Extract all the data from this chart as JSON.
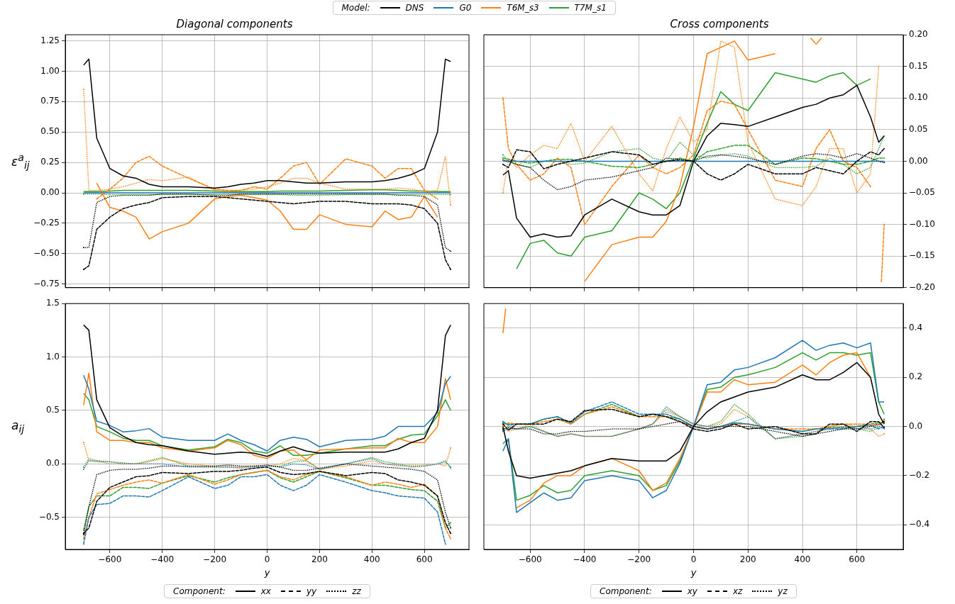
{
  "chart_data": [
    {
      "type": "line",
      "title": "Diagonal components",
      "ylabel": "ε$^{a}$$_{ij}$",
      "legend": "top",
      "legend_title": "Model:",
      "grid": true,
      "tick_labels": "y",
      "marker": "none",
      "x": [
        -700,
        -680,
        -650,
        -600,
        -550,
        -500,
        -450,
        -400,
        -300,
        -200,
        -150,
        -100,
        -50,
        0,
        50,
        100,
        150,
        200,
        300,
        400,
        450,
        500,
        550,
        600,
        650,
        680,
        700
      ],
      "xlim": [
        -770,
        770
      ],
      "xticks": [
        {
          "value": -600,
          "label": null
        },
        {
          "value": -400,
          "label": null
        },
        {
          "value": -200,
          "label": null
        },
        {
          "value": 0,
          "label": null
        },
        {
          "value": 200,
          "label": null
        },
        {
          "value": 400,
          "label": null
        },
        {
          "value": 600,
          "label": null
        }
      ],
      "ylim": [
        -0.78,
        1.3
      ],
      "yticks": [
        {
          "value": -0.75,
          "label": "−0.75"
        },
        {
          "value": -0.5,
          "label": "−0.50"
        },
        {
          "value": -0.25,
          "label": "−0.25"
        },
        {
          "value": 0,
          "label": "0.00"
        },
        {
          "value": 0.25,
          "label": "0.25"
        },
        {
          "value": 0.5,
          "label": "0.50"
        },
        {
          "value": 0.75,
          "label": "0.75"
        },
        {
          "value": 1,
          "label": "1.00"
        },
        {
          "value": 1.25,
          "label": "1.25"
        }
      ],
      "series": [
        {
          "name": "DNS",
          "color": "#000000",
          "line_style": "solid",
          "values": [
            1.05,
            1.1,
            0.45,
            0.2,
            0.14,
            0.12,
            0.07,
            0.05,
            0.05,
            0.04,
            0.05,
            0.07,
            0.08,
            0.1,
            0.1,
            0.09,
            0.08,
            0.08,
            0.09,
            0.09,
            0.1,
            0.12,
            0.15,
            0.2,
            0.5,
            1.1,
            1.08
          ]
        },
        {
          "color": "#000000",
          "line_style": "dashed",
          "values": [
            -0.63,
            -0.6,
            -0.3,
            -0.2,
            -0.13,
            -0.1,
            -0.08,
            -0.04,
            -0.03,
            -0.03,
            -0.04,
            -0.05,
            -0.06,
            -0.07,
            -0.08,
            -0.09,
            -0.08,
            -0.07,
            -0.07,
            -0.09,
            -0.09,
            -0.09,
            -0.1,
            -0.13,
            -0.25,
            -0.55,
            -0.63
          ]
        },
        {
          "color": "#000000",
          "line_style": "dotted",
          "values": [
            -0.45,
            -0.45,
            -0.08,
            -0.03,
            -0.02,
            -0.02,
            -0.02,
            -0.01,
            -0.01,
            -0.02,
            -0.02,
            -0.01,
            -0.01,
            -0.01,
            -0.01,
            -0.01,
            -0.01,
            -0.01,
            -0.01,
            -0.01,
            -0.01,
            -0.02,
            -0.02,
            -0.03,
            -0.1,
            -0.45,
            -0.48
          ]
        },
        {
          "name": "G0",
          "color": "#1f77b4",
          "line_style": "solid",
          "values": [
            0,
            0,
            0,
            0,
            0,
            0,
            0,
            0,
            0,
            0,
            0,
            0,
            0,
            0,
            0,
            0,
            0,
            0,
            0,
            0,
            0,
            0,
            0,
            0,
            0,
            0,
            0
          ]
        },
        {
          "name": "T6M_s3",
          "color": "#ff7f0e",
          "line_style": "solid",
          "values": [
            null,
            null,
            0.08,
            -0.12,
            -0.15,
            -0.2,
            -0.38,
            -0.32,
            -0.25,
            -0.05,
            -0.03,
            -0.02,
            -0.04,
            -0.06,
            -0.15,
            -0.3,
            -0.3,
            -0.18,
            -0.26,
            -0.28,
            -0.15,
            -0.22,
            -0.2,
            -0.03,
            -0.2,
            null,
            null
          ]
        },
        {
          "color": "#ff7f0e",
          "line_style": "dashed",
          "values": [
            null,
            null,
            -0.05,
            0.03,
            0.12,
            0.25,
            0.3,
            0.22,
            0.12,
            0.03,
            0.02,
            0.02,
            0.05,
            0.03,
            0.12,
            0.22,
            0.25,
            0.07,
            0.28,
            0.22,
            0.12,
            0.2,
            0.2,
            0.02,
            -0.05,
            null,
            null
          ]
        },
        {
          "color": "#ff7f0e",
          "line_style": "dotted",
          "values": [
            0.85,
            0.02,
            0.02,
            0.03,
            0.05,
            0.08,
            0.11,
            0.1,
            0.13,
            0.02,
            0.01,
            0.02,
            0.03,
            0.05,
            0.08,
            0.12,
            0.12,
            0.08,
            0.03,
            0.03,
            0.03,
            0.04,
            0.03,
            0.01,
            0.02,
            0.3,
            -0.1
          ]
        },
        {
          "name": "T7M_s1",
          "color": "#2ca02c",
          "line_style": "solid",
          "values": [
            0.01,
            0.01,
            0.01,
            0.015,
            0.02,
            0.02,
            0.02,
            0.02,
            0.02,
            0.015,
            0.01,
            0.01,
            0.01,
            0.01,
            0.015,
            0.015,
            0.015,
            0.015,
            0.02,
            0.025,
            0.025,
            0.02,
            0.015,
            0.015,
            0.01,
            0.01,
            0.01
          ]
        },
        {
          "color": "#2ca02c",
          "line_style": "dotted",
          "values": [
            -0.01,
            -0.01,
            -0.01,
            -0.015,
            -0.015,
            -0.015,
            -0.015,
            -0.015,
            -0.015,
            -0.015,
            -0.015,
            -0.015,
            -0.015,
            -0.015,
            -0.015,
            -0.02,
            -0.02,
            -0.02,
            -0.015,
            -0.015,
            -0.015,
            -0.015,
            -0.015,
            -0.015,
            -0.015,
            -0.015,
            -0.015
          ]
        }
      ]
    },
    {
      "type": "line",
      "title": "Cross components",
      "grid": true,
      "tick_labels": "y",
      "marker": "none",
      "x": [
        -700,
        -680,
        -650,
        -600,
        -550,
        -500,
        -450,
        -400,
        -300,
        -200,
        -150,
        -100,
        -50,
        0,
        50,
        100,
        150,
        200,
        300,
        400,
        450,
        500,
        550,
        600,
        650,
        680,
        700
      ],
      "xlim": [
        -770,
        770
      ],
      "xticks": [
        {
          "value": -600,
          "label": null
        },
        {
          "value": -400,
          "label": null
        },
        {
          "value": -200,
          "label": null
        },
        {
          "value": 0,
          "label": null
        },
        {
          "value": 200,
          "label": null
        },
        {
          "value": 400,
          "label": null
        },
        {
          "value": 600,
          "label": null
        }
      ],
      "y2lim": [
        -0.2,
        0.2
      ],
      "y2ticks": [
        {
          "value": -0.2,
          "label": "−0.20"
        },
        {
          "value": -0.15,
          "label": "−0.15"
        },
        {
          "value": -0.1,
          "label": "−0.10"
        },
        {
          "value": -0.05,
          "label": "−0.05"
        },
        {
          "value": 0,
          "label": "0.00"
        },
        {
          "value": 0.05,
          "label": "0.05"
        },
        {
          "value": 0.1,
          "label": "0.10"
        },
        {
          "value": 0.15,
          "label": "0.15"
        },
        {
          "value": 0.2,
          "label": "0.20"
        }
      ],
      "series": [
        {
          "color": "#000000",
          "line_style": "solid",
          "axis": "y2",
          "values": [
            -0.022,
            -0.015,
            -0.09,
            -0.12,
            -0.115,
            -0.12,
            -0.118,
            -0.085,
            -0.06,
            -0.08,
            -0.085,
            -0.085,
            -0.07,
            0,
            0.04,
            0.06,
            0.058,
            0.055,
            0.07,
            0.085,
            0.09,
            0.1,
            0.105,
            0.12,
            0.07,
            0.03,
            0.04
          ]
        },
        {
          "color": "#000000",
          "line_style": "dashed",
          "axis": "y2",
          "values": [
            -0.005,
            -0.01,
            0.018,
            0.015,
            -0.012,
            -0.005,
            0,
            0.005,
            0.015,
            0.01,
            -0.005,
            0,
            0.002,
            0,
            -0.02,
            -0.03,
            -0.02,
            -0.005,
            -0.02,
            -0.02,
            -0.01,
            -0.015,
            -0.02,
            0,
            0.015,
            0.01,
            0.02
          ]
        },
        {
          "color": "#000000",
          "line_style": "dotted",
          "axis": "y2",
          "values": [
            0.002,
            0,
            -0.005,
            -0.01,
            -0.03,
            -0.045,
            -0.04,
            -0.03,
            -0.025,
            -0.015,
            -0.01,
            0.005,
            0.003,
            0,
            0.008,
            0.01,
            0.008,
            0.005,
            -0.005,
            0.008,
            0.012,
            0.01,
            0.005,
            0.012,
            0.005,
            0,
            -0.002
          ]
        },
        {
          "color": "#1f77b4",
          "line_style": "solid",
          "axis": "y2",
          "values": [
            0,
            0,
            0,
            0,
            0,
            0,
            0,
            0,
            0,
            0,
            0,
            0,
            0,
            0,
            0,
            0,
            0,
            0,
            0,
            0,
            0,
            0,
            0,
            0,
            0,
            0,
            0
          ]
        },
        {
          "color": "#ff7f0e",
          "line_style": "solid",
          "axis": "y2",
          "x": [
            -400,
            -300,
            -200,
            -150,
            -100,
            -50,
            0,
            50,
            100,
            150,
            200,
            300,
            400,
            430,
            450,
            470
          ],
          "values": [
            -0.19,
            -0.132,
            -0.12,
            -0.12,
            -0.095,
            -0.04,
            0.055,
            0.17,
            0.18,
            0.19,
            0.16,
            0.17,
            null,
            0.195,
            0.185,
            0.195
          ]
        },
        {
          "color": "#ff7f0e",
          "line_style": "dashed",
          "axis": "y2",
          "x": [
            -700,
            -680,
            -650,
            -600,
            -550,
            -500,
            -450,
            -400,
            -300,
            -200,
            -150,
            -100,
            -50,
            0,
            50,
            100,
            150,
            200,
            300,
            400,
            450,
            500,
            550,
            600,
            650,
            680,
            690,
            700
          ],
          "values": [
            0.1,
            0.02,
            -0.005,
            -0.03,
            -0.02,
            0.005,
            -0.01,
            -0.1,
            -0.04,
            0.01,
            -0.01,
            -0.02,
            -0.01,
            0.01,
            0.08,
            0.095,
            0.09,
            0.05,
            -0.03,
            -0.04,
            0.02,
            0.05,
            0,
            -0.01,
            -0.04,
            null,
            -0.19,
            -0.1
          ]
        },
        {
          "color": "#ff7f0e",
          "line_style": "dotted",
          "axis": "y2",
          "values": [
            -0.05,
            0.005,
            -0.01,
            0.01,
            0.025,
            0.02,
            0.06,
            0,
            0.055,
            -0.02,
            -0.047,
            0.02,
            0.07,
            0.03,
            0.05,
            0.19,
            0.18,
            0.03,
            -0.06,
            -0.07,
            -0.04,
            0.02,
            0.02,
            -0.05,
            -0.02,
            0.15,
            null
          ]
        },
        {
          "color": "#2ca02c",
          "line_style": "solid",
          "axis": "y2",
          "values": [
            null,
            null,
            -0.17,
            -0.13,
            -0.125,
            -0.145,
            -0.15,
            -0.12,
            -0.11,
            -0.05,
            -0.06,
            -0.075,
            -0.05,
            0.005,
            0.06,
            0.11,
            0.09,
            0.08,
            0.14,
            0.13,
            0.125,
            0.135,
            0.14,
            0.12,
            0.13,
            null,
            null
          ]
        },
        {
          "color": "#2ca02c",
          "line_style": "dashed",
          "axis": "y2",
          "values": [
            0.005,
            0.003,
            0,
            -0.003,
            0,
            0.003,
            0.003,
            0,
            -0.008,
            -0.01,
            -0.005,
            0,
            0.005,
            0,
            0.015,
            0.02,
            0.025,
            0.025,
            -0.005,
            0.005,
            0.004,
            0,
            -0.005,
            -0.005,
            0,
            0.005,
            0.005
          ]
        },
        {
          "color": "#2ca02c",
          "line_style": "dotted",
          "axis": "y2",
          "values": [
            0.01,
            0,
            -0.005,
            -0.01,
            0,
            0,
            -0.005,
            -0.003,
            0.015,
            0.02,
            0.005,
            0,
            0.03,
            0.01,
            0.005,
            0.01,
            0.012,
            0.008,
            -0.01,
            -0.01,
            -0.008,
            0.005,
            -0.005,
            -0.02,
            -0.01,
            0.02,
            0.04
          ]
        }
      ]
    },
    {
      "type": "line",
      "xlabel": "y",
      "ylabel": "a$_{ij}$",
      "legend": "bottom",
      "legend_title": "Component:",
      "annotations": [
        "xx",
        "yy",
        "zz"
      ],
      "grid": true,
      "marker": "none",
      "x": [
        -700,
        -680,
        -650,
        -600,
        -550,
        -500,
        -450,
        -400,
        -300,
        -200,
        -150,
        -100,
        -50,
        0,
        50,
        100,
        150,
        200,
        300,
        400,
        450,
        500,
        550,
        600,
        650,
        680,
        700
      ],
      "xlim": [
        -770,
        770
      ],
      "xticks": [
        {
          "value": -600,
          "label": "−600"
        },
        {
          "value": -400,
          "label": "−400"
        },
        {
          "value": -200,
          "label": "−200"
        },
        0,
        200,
        400,
        600
      ],
      "ylim": [
        -0.8,
        1.5
      ],
      "yticks": [
        {
          "value": -0.5,
          "label": "−0.5"
        },
        {
          "value": 0,
          "label": "0.0"
        },
        {
          "value": 0.5,
          "label": "0.5"
        },
        {
          "value": 1,
          "label": "1.0"
        },
        {
          "value": 1.5,
          "label": "1.5"
        }
      ],
      "series": [
        {
          "color": "#000000",
          "line_style": "solid",
          "values": [
            1.3,
            1.25,
            0.6,
            0.34,
            0.26,
            0.2,
            0.18,
            0.17,
            0.12,
            0.09,
            0.1,
            0.11,
            0.1,
            0.07,
            0.12,
            0.16,
            0.12,
            0.1,
            0.11,
            0.11,
            0.11,
            0.14,
            0.2,
            0.24,
            0.5,
            1.2,
            1.3
          ]
        },
        {
          "color": "#000000",
          "line_style": "dashed",
          "values": [
            -0.65,
            -0.6,
            -0.35,
            -0.22,
            -0.17,
            -0.12,
            -0.11,
            -0.08,
            -0.09,
            -0.07,
            -0.07,
            -0.06,
            -0.04,
            -0.03,
            -0.08,
            -0.1,
            -0.09,
            -0.07,
            -0.11,
            -0.08,
            -0.09,
            -0.15,
            -0.17,
            -0.2,
            -0.3,
            -0.55,
            -0.65
          ]
        },
        {
          "color": "#000000",
          "line_style": "dotted",
          "values": [
            -0.66,
            -0.4,
            -0.1,
            -0.06,
            -0.05,
            -0.05,
            -0.04,
            -0.02,
            -0.02,
            -0.02,
            -0.01,
            -0.02,
            -0.02,
            -0.01,
            -0.03,
            -0.06,
            -0.06,
            -0.04,
            0,
            -0.02,
            -0.03,
            -0.04,
            -0.05,
            -0.07,
            -0.15,
            -0.45,
            -0.6
          ]
        },
        {
          "color": "#1f77b4",
          "line_style": "solid",
          "values": [
            0.83,
            0.7,
            0.4,
            0.36,
            0.3,
            0.31,
            0.33,
            0.25,
            0.22,
            0.22,
            0.28,
            0.22,
            0.18,
            0.12,
            0.22,
            0.25,
            0.23,
            0.16,
            0.22,
            0.23,
            0.26,
            0.35,
            0.35,
            0.35,
            0.48,
            0.75,
            0.82
          ]
        },
        {
          "color": "#1f77b4",
          "line_style": "dashed",
          "values": [
            -0.75,
            -0.5,
            -0.38,
            -0.37,
            -0.3,
            -0.3,
            -0.31,
            -0.25,
            -0.12,
            -0.23,
            -0.2,
            -0.12,
            -0.12,
            -0.1,
            -0.2,
            -0.25,
            -0.2,
            -0.1,
            -0.17,
            -0.25,
            -0.27,
            -0.3,
            -0.31,
            -0.32,
            -0.45,
            -0.75,
            null
          ]
        },
        {
          "color": "#1f77b4",
          "line_style": "dotted",
          "values": [
            -0.05,
            0.03,
            0.02,
            0.02,
            0,
            0,
            0,
            0,
            -0.03,
            -0.03,
            -0.03,
            -0.04,
            -0.03,
            -0.02,
            -0.03,
            0,
            -0.01,
            -0.05,
            0,
            0.05,
            0,
            -0.01,
            -0.03,
            -0.02,
            0,
            0.02,
            -0.03
          ]
        },
        {
          "color": "#ff7f0e",
          "line_style": "solid",
          "values": [
            0.55,
            0.85,
            0.3,
            0.22,
            0.22,
            0.2,
            0.2,
            0.15,
            0.12,
            0.15,
            0.22,
            0.18,
            0.08,
            0.05,
            0.12,
            0.13,
            0.04,
            0.13,
            0.14,
            0.15,
            0.15,
            0.24,
            0.2,
            0.2,
            0.35,
            0.8,
            0.6
          ]
        },
        {
          "color": "#ff7f0e",
          "line_style": "dashed",
          "values": [
            -0.7,
            -0.5,
            -0.28,
            -0.24,
            -0.2,
            -0.17,
            -0.15,
            -0.18,
            -0.1,
            -0.19,
            -0.15,
            -0.1,
            -0.08,
            -0.06,
            -0.12,
            -0.15,
            -0.1,
            -0.07,
            -0.12,
            -0.2,
            -0.17,
            -0.19,
            -0.22,
            -0.19,
            -0.3,
            -0.6,
            -0.7
          ]
        },
        {
          "color": "#ff7f0e",
          "line_style": "dotted",
          "values": [
            0.2,
            0.03,
            0.03,
            0,
            0,
            0,
            0.02,
            0.05,
            0,
            -0.02,
            -0.02,
            -0.03,
            -0.02,
            -0.02,
            0,
            0.05,
            0.03,
            -0.05,
            -0.02,
            0.03,
            0,
            -0.02,
            -0.01,
            -0.01,
            0,
            -0.02,
            0.15
          ]
        },
        {
          "color": "#2ca02c",
          "line_style": "solid",
          "values": [
            0.66,
            0.6,
            0.35,
            0.3,
            0.24,
            0.22,
            0.22,
            0.17,
            0.13,
            0.16,
            0.23,
            0.2,
            0.12,
            0.1,
            0.17,
            0.08,
            0.08,
            0.1,
            0.14,
            0.17,
            0.17,
            0.23,
            0.27,
            0.28,
            0.45,
            0.6,
            0.5
          ]
        },
        {
          "color": "#2ca02c",
          "line_style": "dashed",
          "values": [
            -0.62,
            -0.4,
            -0.3,
            -0.3,
            -0.22,
            -0.22,
            -0.23,
            -0.18,
            -0.11,
            -0.17,
            -0.13,
            -0.1,
            -0.08,
            -0.06,
            -0.13,
            -0.17,
            -0.12,
            -0.07,
            -0.13,
            -0.2,
            -0.2,
            -0.22,
            -0.24,
            -0.25,
            -0.35,
            -0.6,
            -0.55
          ]
        },
        {
          "color": "#2ca02c",
          "line_style": "dotted",
          "values": [
            -0.03,
            0.05,
            0.03,
            0.02,
            0.01,
            0,
            0.03,
            0.06,
            -0.02,
            -0.03,
            -0.03,
            -0.03,
            -0.02,
            -0.02,
            -0.02,
            0.02,
            0.03,
            -0.05,
            0,
            0.06,
            0.02,
            0,
            -0.02,
            -0.02,
            0,
            0.03,
            -0.04
          ]
        }
      ]
    },
    {
      "type": "line",
      "xlabel": "y",
      "legend": "bottom",
      "legend_title": "Component:",
      "annotations": [
        "xy",
        "xz",
        "yz"
      ],
      "grid": true,
      "marker": "none",
      "x": [
        -700,
        -680,
        -650,
        -600,
        -550,
        -500,
        -450,
        -400,
        -300,
        -200,
        -150,
        -100,
        -50,
        0,
        50,
        100,
        150,
        200,
        300,
        400,
        450,
        500,
        550,
        600,
        650,
        680,
        700
      ],
      "xlim": [
        -770,
        770
      ],
      "xticks": [
        {
          "value": -600,
          "label": "−600"
        },
        {
          "value": -400,
          "label": "−400"
        },
        {
          "value": -200,
          "label": "−200"
        },
        0,
        200,
        400,
        600
      ],
      "y2lim": [
        -0.5,
        0.5
      ],
      "y2ticks": [
        {
          "value": -0.4,
          "label": "−0.4"
        },
        {
          "value": -0.2,
          "label": "−0.2"
        },
        {
          "value": 0,
          "label": "0.0"
        },
        {
          "value": 0.2,
          "label": "0.2"
        },
        {
          "value": 0.4,
          "label": "0.4"
        }
      ],
      "series": [
        {
          "color": "#000000",
          "line_style": "solid",
          "axis": "y2",
          "values": [
            0,
            -0.1,
            -0.2,
            -0.21,
            -0.2,
            -0.19,
            -0.18,
            -0.16,
            -0.13,
            -0.14,
            -0.14,
            -0.14,
            -0.1,
            0,
            0.06,
            0.1,
            0.12,
            0.14,
            0.16,
            0.21,
            0.19,
            0.19,
            0.22,
            0.26,
            0.2,
            0.05,
            0.01
          ]
        },
        {
          "color": "#000000",
          "line_style": "dashed",
          "axis": "y2",
          "values": [
            0.01,
            -0.015,
            0.01,
            0.01,
            0.01,
            0.03,
            0.02,
            0.065,
            0.07,
            0.04,
            0.05,
            0.04,
            0.02,
            -0.01,
            -0.02,
            -0.01,
            0.01,
            -0.01,
            0,
            -0.03,
            -0.03,
            0.01,
            0.01,
            -0.02,
            0.02,
            0.02,
            -0.005
          ]
        },
        {
          "color": "#000000",
          "line_style": "dotted",
          "axis": "y2",
          "values": [
            -0.01,
            -0.005,
            -0.01,
            -0.01,
            -0.03,
            -0.03,
            -0.02,
            -0.02,
            -0.01,
            -0.01,
            0,
            0.01,
            0.02,
            0,
            -0.01,
            0,
            0,
            0,
            -0.02,
            -0.04,
            -0.03,
            -0.02,
            -0.01,
            -0.01,
            0,
            0.01,
            0.02
          ]
        },
        {
          "color": "#1f77b4",
          "line_style": "solid",
          "axis": "y2",
          "values": [
            -0.1,
            -0.05,
            -0.35,
            -0.31,
            -0.27,
            -0.3,
            -0.29,
            -0.22,
            -0.2,
            -0.22,
            -0.29,
            -0.26,
            -0.15,
            0,
            0.17,
            0.18,
            0.23,
            0.24,
            0.28,
            0.35,
            0.31,
            0.33,
            0.34,
            0.32,
            0.34,
            0.1,
            0.1
          ]
        },
        {
          "color": "#1f77b4",
          "line_style": "dashed",
          "axis": "y2",
          "values": [
            0.02,
            0.005,
            0.01,
            0.01,
            0.03,
            0.04,
            0.015,
            0.06,
            0.1,
            0.05,
            0.05,
            0.05,
            0.03,
            0,
            -0.01,
            0,
            0.015,
            0.01,
            -0.01,
            -0.02,
            -0.01,
            -0.01,
            -0.01,
            0,
            0.005,
            -0.01,
            0
          ]
        },
        {
          "color": "#1f77b4",
          "line_style": "dotted",
          "axis": "y2",
          "values": [
            -0.02,
            -0.01,
            -0.01,
            0,
            -0.02,
            -0.04,
            -0.03,
            -0.04,
            -0.04,
            -0.01,
            0.01,
            0.08,
            0.04,
            0.01,
            0,
            0,
            0.02,
            0.04,
            -0.05,
            -0.03,
            -0.02,
            -0.01,
            0,
            -0.01,
            -0.01,
            0,
            -0.01
          ]
        },
        {
          "color": "#ff7f0e",
          "line_style": "solid",
          "axis": "y2",
          "x": [
            -700,
            -690,
            -680,
            -650,
            -600,
            -550,
            -500,
            -450,
            -400,
            -300,
            -200,
            -150,
            -100,
            -50,
            0,
            50,
            100,
            150,
            200,
            300,
            400,
            450,
            500,
            550,
            600,
            650
          ],
          "values": [
            0.38,
            0.48,
            null,
            -0.33,
            -0.3,
            -0.23,
            -0.2,
            -0.2,
            -0.16,
            -0.13,
            -0.18,
            -0.26,
            -0.23,
            -0.13,
            0,
            0.14,
            0.14,
            0.19,
            0.17,
            0.18,
            0.25,
            0.21,
            0.26,
            0.29,
            0.3,
            0.2
          ]
        },
        {
          "color": "#ff7f0e",
          "line_style": "dashed",
          "axis": "y2",
          "values": [
            0.005,
            0.015,
            0.01,
            0.01,
            0.02,
            0.03,
            0.01,
            0.05,
            0.08,
            0.04,
            0.04,
            0.04,
            0.02,
            0,
            -0.01,
            0,
            0.01,
            0.01,
            -0.01,
            -0.01,
            -0.01,
            0,
            0.01,
            0.01,
            0.01,
            0.005,
            0.025
          ]
        },
        {
          "color": "#ff7f0e",
          "line_style": "dotted",
          "axis": "y2",
          "values": [
            -0.005,
            -0.02,
            -0.01,
            0.01,
            -0.02,
            -0.04,
            -0.03,
            -0.04,
            -0.04,
            -0.01,
            0.01,
            0.06,
            0.04,
            0.01,
            0,
            0.01,
            0.07,
            0.04,
            -0.05,
            -0.03,
            -0.02,
            0,
            0.01,
            0,
            -0.01,
            -0.04,
            -0.03
          ]
        },
        {
          "color": "#2ca02c",
          "line_style": "solid",
          "axis": "y2",
          "values": [
            -0.07,
            -0.05,
            -0.3,
            -0.28,
            -0.24,
            -0.27,
            -0.26,
            -0.2,
            -0.18,
            -0.2,
            -0.26,
            -0.24,
            -0.14,
            0,
            0.15,
            0.16,
            0.2,
            0.21,
            0.24,
            0.3,
            0.27,
            0.3,
            0.3,
            0.29,
            0.3,
            0.1,
            0.05
          ]
        },
        {
          "color": "#2ca02c",
          "line_style": "dashed",
          "axis": "y2",
          "values": [
            0.015,
            0.01,
            0.01,
            0.01,
            0.03,
            0.04,
            0.01,
            0.05,
            0.09,
            0.04,
            0.05,
            0.04,
            0.03,
            0,
            -0.01,
            0,
            0.015,
            0.01,
            -0.01,
            -0.02,
            -0.01,
            -0.005,
            -0.005,
            0,
            0.01,
            0.015,
            0.015
          ]
        },
        {
          "color": "#2ca02c",
          "line_style": "dotted",
          "axis": "y2",
          "values": [
            -0.015,
            0,
            -0.01,
            0,
            -0.02,
            -0.04,
            -0.03,
            -0.04,
            -0.04,
            -0.01,
            0.01,
            0.07,
            0.04,
            0.01,
            0,
            0.02,
            0.09,
            0.05,
            -0.05,
            -0.04,
            -0.03,
            0,
            0.01,
            -0.01,
            -0.02,
            -0.005,
            0.03
          ]
        }
      ]
    }
  ]
}
